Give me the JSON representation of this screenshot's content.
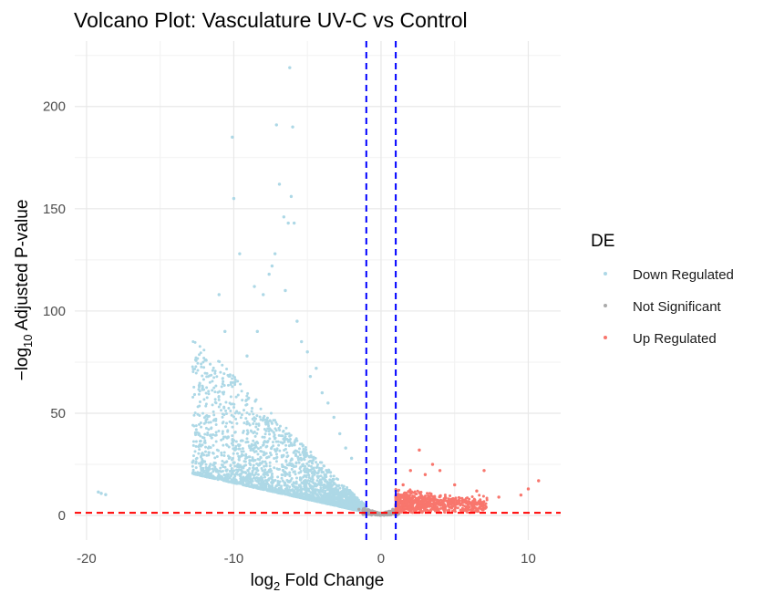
{
  "chart_data": {
    "type": "scatter",
    "title": "Volcano Plot: Vasculature UV-C vs Control",
    "xlabel": {
      "prefix": "log",
      "sub": "2",
      "suffix": " Fold Change"
    },
    "ylabel": {
      "prefix": "−log",
      "sub": "10",
      "suffix": " Adjusted P-value"
    },
    "xlim": [
      -20.8,
      12.2
    ],
    "ylim": [
      -12,
      232
    ],
    "x_ticks": [
      -20,
      -10,
      0,
      10
    ],
    "y_ticks": [
      0,
      50,
      100,
      150,
      200
    ],
    "grid": true,
    "legend_position": "right",
    "legend_title": "DE",
    "thresholds": {
      "log2fc": [
        -1,
        1
      ],
      "neg_log10_padj": 1.3,
      "vline_color": "#0000ff",
      "hline_color": "#ff0000"
    },
    "series": [
      {
        "name": "Down Regulated",
        "color": "#add8e6",
        "points": [
          [
            -19.2,
            11.5
          ],
          [
            -19.0,
            10.8
          ],
          [
            -18.7,
            10.2
          ],
          [
            -12.8,
            26
          ],
          [
            -12.2,
            23
          ],
          [
            -11.5,
            38
          ],
          [
            -11.0,
            108
          ],
          [
            -10.6,
            90
          ],
          [
            -10.1,
            185
          ],
          [
            -10.0,
            155
          ],
          [
            -9.6,
            128
          ],
          [
            -9.1,
            78
          ],
          [
            -8.6,
            112
          ],
          [
            -8.4,
            90
          ],
          [
            -8.0,
            108
          ],
          [
            -7.6,
            118
          ],
          [
            -7.4,
            122
          ],
          [
            -7.2,
            128
          ],
          [
            -7.1,
            191
          ],
          [
            -6.9,
            162
          ],
          [
            -6.6,
            146
          ],
          [
            -6.5,
            110
          ],
          [
            -6.3,
            143
          ],
          [
            -6.2,
            219
          ],
          [
            -6.1,
            156
          ],
          [
            -6.0,
            190
          ],
          [
            -5.9,
            143
          ],
          [
            -5.7,
            95
          ],
          [
            -5.4,
            85
          ],
          [
            -5.0,
            80
          ],
          [
            -4.8,
            68
          ],
          [
            -4.4,
            72
          ],
          [
            -4.0,
            60
          ],
          [
            -3.6,
            55
          ],
          [
            -3.2,
            48
          ],
          [
            -2.8,
            40
          ],
          [
            -2.4,
            33
          ],
          [
            -2.0,
            28
          ]
        ]
      },
      {
        "name": "Not Significant",
        "color": "#aaaaaa",
        "points": [
          [
            -1.5,
            3
          ],
          [
            -0.8,
            2
          ],
          [
            -0.2,
            1
          ],
          [
            0.3,
            1.5
          ],
          [
            0.8,
            3
          ]
        ]
      },
      {
        "name": "Up Regulated",
        "color": "#f8766d",
        "points": [
          [
            1.5,
            15
          ],
          [
            2.0,
            22
          ],
          [
            2.6,
            32
          ],
          [
            3.0,
            20
          ],
          [
            3.5,
            25
          ],
          [
            4.0,
            22
          ],
          [
            5.0,
            15
          ],
          [
            6.5,
            12
          ],
          [
            7.0,
            22
          ],
          [
            8.0,
            9
          ],
          [
            9.5,
            10
          ],
          [
            10.0,
            13
          ],
          [
            10.7,
            17
          ]
        ]
      }
    ]
  }
}
